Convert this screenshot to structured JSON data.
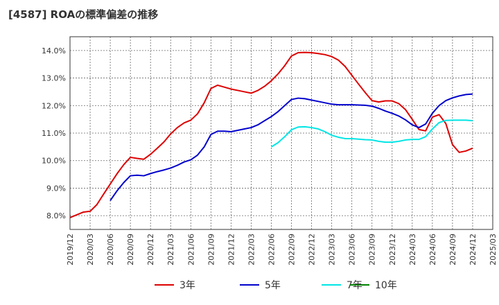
{
  "chart_data": {
    "type": "line",
    "title": "[4587]  ROAの標準偏差の推移",
    "xlabel": "",
    "ylabel": "",
    "y_tick_labels": [
      "8.0%",
      "9.0%",
      "10.0%",
      "11.0%",
      "12.0%",
      "13.0%",
      "14.0%"
    ],
    "y_ticks": [
      8.0,
      9.0,
      10.0,
      11.0,
      12.0,
      13.0,
      14.0
    ],
    "ylim": [
      7.5,
      14.5
    ],
    "x_tick_labels": [
      "2019/12",
      "2020/03",
      "2020/06",
      "2020/09",
      "2020/12",
      "2021/03",
      "2021/06",
      "2021/09",
      "2021/12",
      "2022/03",
      "2022/06",
      "2022/09",
      "2022/12",
      "2023/03",
      "2023/06",
      "2023/09",
      "2023/12",
      "2024/03",
      "2024/06",
      "2024/09",
      "2024/12",
      "2025/03"
    ],
    "xlim": [
      "2019/12",
      "2025/03"
    ],
    "grid": true,
    "legend_position": "bottom",
    "colors": {
      "3y": "#dd0000",
      "5y": "#0000cc",
      "7y": "#00e5e5",
      "10y": "#008000"
    },
    "series": [
      {
        "name": "3年",
        "color": "#dd0000",
        "points": [
          [
            "2019/12",
            7.93
          ],
          [
            "2020/01",
            8.03
          ],
          [
            "2020/02",
            8.13
          ],
          [
            "2020/03",
            8.16
          ],
          [
            "2020/04",
            8.4
          ],
          [
            "2020/05",
            8.78
          ],
          [
            "2020/06",
            9.15
          ],
          [
            "2020/07",
            9.52
          ],
          [
            "2020/08",
            9.85
          ],
          [
            "2020/09",
            10.12
          ],
          [
            "2020/10",
            10.08
          ],
          [
            "2020/11",
            10.05
          ],
          [
            "2020/12",
            10.23
          ],
          [
            "2020/01b",
            10.22
          ],
          [
            "2021/01",
            10.45
          ],
          [
            "2021/02",
            10.68
          ],
          [
            "2021/03",
            10.97
          ],
          [
            "2021/04",
            11.2
          ],
          [
            "2021/05",
            11.37
          ],
          [
            "2021/06",
            11.47
          ],
          [
            "2021/07",
            11.7
          ],
          [
            "2021/08",
            12.1
          ],
          [
            "2021/09",
            12.62
          ],
          [
            "2021/10",
            12.74
          ],
          [
            "2021/11",
            12.67
          ],
          [
            "2021/12",
            12.6
          ],
          [
            "2022/01",
            12.55
          ],
          [
            "2022/02",
            12.5
          ],
          [
            "2022/03",
            12.45
          ],
          [
            "2022/04",
            12.55
          ],
          [
            "2022/05",
            12.7
          ],
          [
            "2022/06",
            12.9
          ],
          [
            "2022/07",
            13.15
          ],
          [
            "2022/08",
            13.45
          ],
          [
            "2022/09",
            13.8
          ],
          [
            "2022/10",
            13.92
          ],
          [
            "2022/11",
            13.93
          ],
          [
            "2022/12",
            13.92
          ],
          [
            "2023/01",
            13.89
          ],
          [
            "2023/02",
            13.85
          ],
          [
            "2023/03",
            13.78
          ],
          [
            "2023/04",
            13.65
          ],
          [
            "2023/05",
            13.42
          ],
          [
            "2023/06",
            13.1
          ],
          [
            "2023/07",
            12.78
          ],
          [
            "2023/08",
            12.47
          ],
          [
            "2023/09",
            12.18
          ],
          [
            "2023/10",
            12.13
          ],
          [
            "2023/11",
            12.17
          ],
          [
            "2023/12",
            12.17
          ],
          [
            "2024/01",
            12.07
          ],
          [
            "2024/02",
            11.85
          ],
          [
            "2024/03",
            11.5
          ],
          [
            "2024/04",
            11.13
          ],
          [
            "2024/05",
            11.08
          ],
          [
            "2024/06",
            11.58
          ],
          [
            "2024/07",
            11.67
          ],
          [
            "2024/08",
            11.35
          ],
          [
            "2024/09",
            10.58
          ],
          [
            "2024/10",
            10.3
          ],
          [
            "2024/11",
            10.35
          ],
          [
            "2024/12",
            10.45
          ]
        ]
      },
      {
        "name": "5年",
        "color": "#0000cc",
        "points": [
          [
            "2020/06",
            8.55
          ],
          [
            "2020/07",
            8.9
          ],
          [
            "2020/08",
            9.2
          ],
          [
            "2020/09",
            9.45
          ],
          [
            "2020/10",
            9.47
          ],
          [
            "2020/11",
            9.45
          ],
          [
            "2020/12",
            9.53
          ],
          [
            "2021/01",
            9.6
          ],
          [
            "2021/02",
            9.66
          ],
          [
            "2021/03",
            9.73
          ],
          [
            "2021/04",
            9.83
          ],
          [
            "2021/05",
            9.95
          ],
          [
            "2021/06",
            10.03
          ],
          [
            "2021/07",
            10.2
          ],
          [
            "2021/08",
            10.5
          ],
          [
            "2021/09",
            10.95
          ],
          [
            "2021/10",
            11.07
          ],
          [
            "2021/11",
            11.07
          ],
          [
            "2021/12",
            11.05
          ],
          [
            "2022/01",
            11.1
          ],
          [
            "2022/02",
            11.15
          ],
          [
            "2022/03",
            11.2
          ],
          [
            "2022/04",
            11.3
          ],
          [
            "2022/05",
            11.45
          ],
          [
            "2022/06",
            11.6
          ],
          [
            "2022/07",
            11.78
          ],
          [
            "2022/08",
            12.0
          ],
          [
            "2022/09",
            12.22
          ],
          [
            "2022/10",
            12.27
          ],
          [
            "2022/11",
            12.25
          ],
          [
            "2022/12",
            12.2
          ],
          [
            "2023/01",
            12.15
          ],
          [
            "2023/02",
            12.1
          ],
          [
            "2023/03",
            12.05
          ],
          [
            "2023/04",
            12.03
          ],
          [
            "2023/05",
            12.03
          ],
          [
            "2023/06",
            12.03
          ],
          [
            "2023/07",
            12.02
          ],
          [
            "2023/08",
            12.01
          ],
          [
            "2023/09",
            11.98
          ],
          [
            "2023/10",
            11.9
          ],
          [
            "2023/11",
            11.8
          ],
          [
            "2023/12",
            11.72
          ],
          [
            "2024/01",
            11.62
          ],
          [
            "2024/02",
            11.48
          ],
          [
            "2024/03",
            11.3
          ],
          [
            "2024/04",
            11.2
          ],
          [
            "2024/05",
            11.33
          ],
          [
            "2024/06",
            11.72
          ],
          [
            "2024/07",
            12.0
          ],
          [
            "2024/08",
            12.18
          ],
          [
            "2024/09",
            12.28
          ],
          [
            "2024/10",
            12.35
          ],
          [
            "2024/11",
            12.4
          ],
          [
            "2024/12",
            12.42
          ]
        ]
      },
      {
        "name": "7年",
        "color": "#00e5e5",
        "points": [
          [
            "2022/06",
            10.5
          ],
          [
            "2022/07",
            10.65
          ],
          [
            "2022/08",
            10.87
          ],
          [
            "2022/09",
            11.12
          ],
          [
            "2022/10",
            11.22
          ],
          [
            "2022/11",
            11.23
          ],
          [
            "2022/12",
            11.2
          ],
          [
            "2023/01",
            11.15
          ],
          [
            "2023/02",
            11.05
          ],
          [
            "2023/03",
            10.92
          ],
          [
            "2023/04",
            10.85
          ],
          [
            "2023/05",
            10.8
          ],
          [
            "2023/06",
            10.8
          ],
          [
            "2023/07",
            10.78
          ],
          [
            "2023/08",
            10.76
          ],
          [
            "2023/09",
            10.75
          ],
          [
            "2023/10",
            10.7
          ],
          [
            "2023/11",
            10.67
          ],
          [
            "2023/12",
            10.67
          ],
          [
            "2024/01",
            10.7
          ],
          [
            "2024/02",
            10.75
          ],
          [
            "2024/03",
            10.77
          ],
          [
            "2024/04",
            10.77
          ],
          [
            "2024/05",
            10.87
          ],
          [
            "2024/06",
            11.15
          ],
          [
            "2024/07",
            11.38
          ],
          [
            "2024/08",
            11.46
          ],
          [
            "2024/09",
            11.47
          ],
          [
            "2024/10",
            11.47
          ],
          [
            "2024/11",
            11.47
          ],
          [
            "2024/12",
            11.45
          ]
        ]
      },
      {
        "name": "10年",
        "color": "#008000",
        "points": []
      }
    ]
  }
}
